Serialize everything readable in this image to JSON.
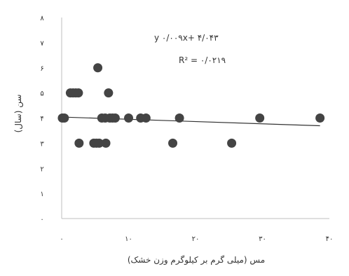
{
  "chart_data": {
    "type": "scatter",
    "xlabel": "مس (میلی گرم بر کیلوگرم وزن خشک)",
    "ylabel": "سن (سال)",
    "xlim": [
      0,
      40
    ],
    "ylim": [
      0,
      8
    ],
    "x_ticks": [
      0,
      10,
      20,
      30,
      40
    ],
    "x_tick_labels": [
      "۰",
      "۱۰",
      "۲۰",
      "۳۰",
      "۴۰"
    ],
    "y_ticks": [
      0,
      1,
      2,
      3,
      4,
      5,
      6,
      7,
      8
    ],
    "y_tick_labels": [
      "۰",
      "۱",
      "۲",
      "۳",
      "۴",
      "۵",
      "۶",
      "۷",
      "۸"
    ],
    "points": [
      {
        "x": 0.1,
        "y": 4
      },
      {
        "x": 0.4,
        "y": 4
      },
      {
        "x": 1.3,
        "y": 5
      },
      {
        "x": 1.7,
        "y": 5
      },
      {
        "x": 2.1,
        "y": 5
      },
      {
        "x": 2.5,
        "y": 5
      },
      {
        "x": 2.6,
        "y": 3
      },
      {
        "x": 4.8,
        "y": 3
      },
      {
        "x": 5.2,
        "y": 3
      },
      {
        "x": 5.6,
        "y": 3
      },
      {
        "x": 6.6,
        "y": 3
      },
      {
        "x": 5.4,
        "y": 6
      },
      {
        "x": 6.0,
        "y": 4
      },
      {
        "x": 6.5,
        "y": 4
      },
      {
        "x": 7.0,
        "y": 5
      },
      {
        "x": 7.2,
        "y": 4
      },
      {
        "x": 7.6,
        "y": 4
      },
      {
        "x": 8.0,
        "y": 4
      },
      {
        "x": 10.0,
        "y": 4
      },
      {
        "x": 11.8,
        "y": 4
      },
      {
        "x": 12.6,
        "y": 4
      },
      {
        "x": 16.6,
        "y": 3
      },
      {
        "x": 17.6,
        "y": 4
      },
      {
        "x": 25.4,
        "y": 3
      },
      {
        "x": 29.6,
        "y": 4
      },
      {
        "x": 38.6,
        "y": 4
      }
    ],
    "trendline": {
      "x_start": 0,
      "x_end": 38.6,
      "slope": -0.009,
      "intercept": 4.04
    },
    "equation_line1": "y  ۰/۰۰۹x+ ۴/۰۴۳",
    "equation_line2": "R² = ۰/۰۲۱۹",
    "marker_color": "#444444",
    "line_color": "#333333",
    "axis_color": "#bfbfbf",
    "grid": false
  }
}
